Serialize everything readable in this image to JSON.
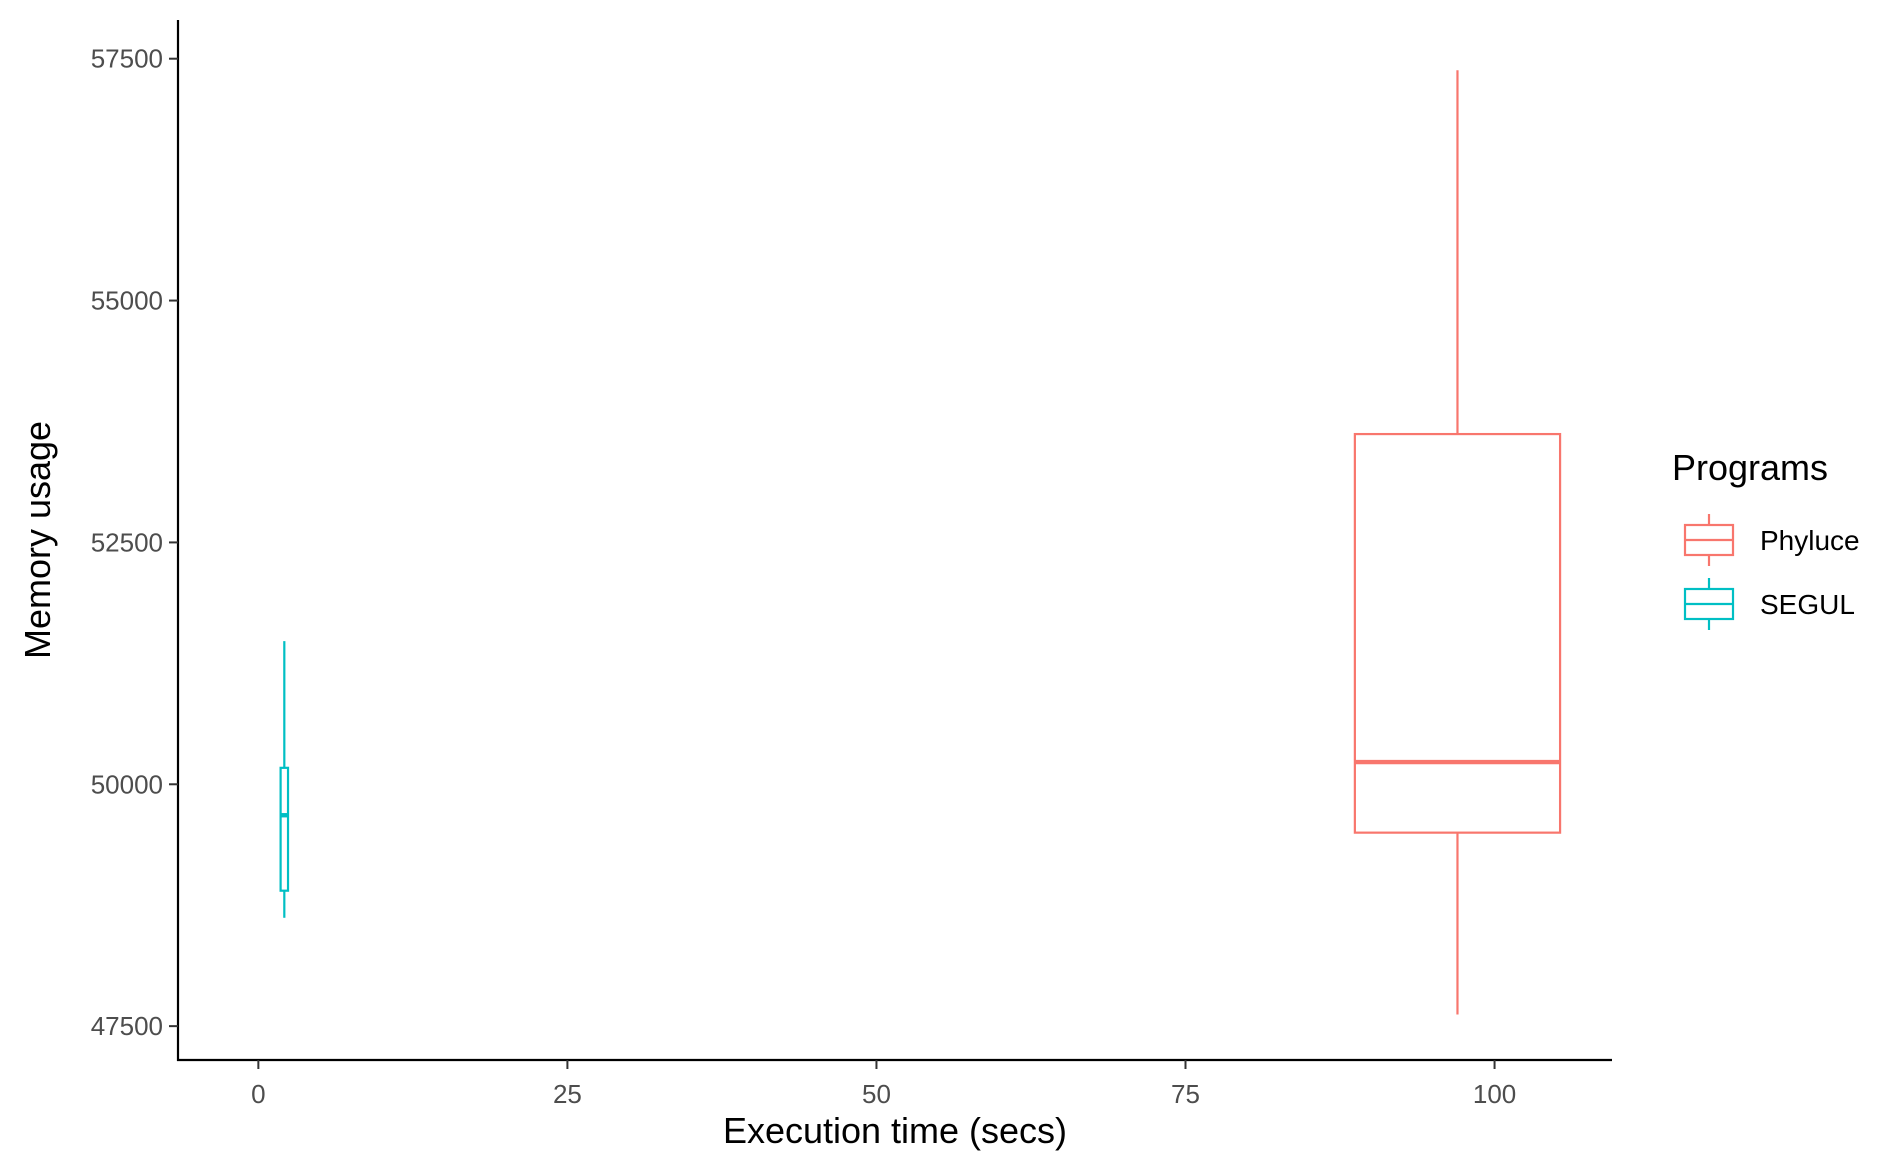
{
  "chart_data": {
    "type": "boxplot",
    "orientation": "horizontal-position",
    "title": "",
    "xlabel": "Execution time (secs)",
    "ylabel": "Memory usage",
    "xlim": [
      -6.5,
      109.5
    ],
    "ylim": [
      47150,
      57900
    ],
    "x_ticks": [
      0,
      25,
      50,
      75,
      100
    ],
    "x_tick_labels": [
      "0",
      "25",
      "50",
      "75",
      "100"
    ],
    "y_ticks": [
      47500,
      50000,
      52500,
      55000,
      57500
    ],
    "y_tick_labels": [
      "47500",
      "50000",
      "52500",
      "55000",
      "57500"
    ],
    "grid": false,
    "legend": {
      "title": "Programs",
      "position": "right"
    },
    "series": [
      {
        "name": "Phyluce",
        "color": "#F8766D",
        "x_center": 97,
        "x_min": 88.7,
        "x_max": 105.3,
        "whisker_low": 47620,
        "q1": 49500,
        "median": 50230,
        "q3": 53620,
        "whisker_high": 57380
      },
      {
        "name": "SEGUL",
        "color": "#00BFC4",
        "x_center": 2.1,
        "x_min": 1.8,
        "x_max": 2.4,
        "whisker_low": 48620,
        "q1": 48900,
        "median": 49680,
        "q3": 50170,
        "whisker_high": 51480
      }
    ]
  }
}
